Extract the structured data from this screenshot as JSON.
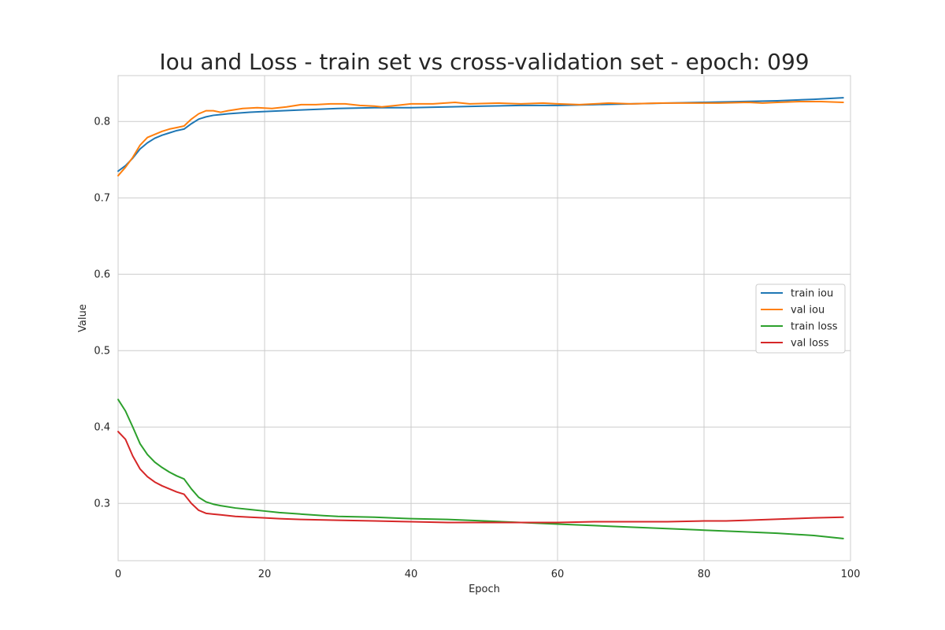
{
  "chart_data": {
    "type": "line",
    "title": "Iou and Loss - train set vs cross-validation set - epoch: 099",
    "xlabel": "Epoch",
    "ylabel": "Value",
    "xlim": [
      0,
      100
    ],
    "ylim": [
      0.225,
      0.86
    ],
    "xticks": [
      0,
      20,
      40,
      60,
      80,
      100
    ],
    "xtick_labels": [
      "0",
      "20",
      "40",
      "60",
      "80",
      "100"
    ],
    "yticks": [
      0.3,
      0.4,
      0.5,
      0.6,
      0.7,
      0.8
    ],
    "ytick_labels": [
      "0.3",
      "0.4",
      "0.5",
      "0.6",
      "0.7",
      "0.8"
    ],
    "grid": true,
    "legend_position": "center-right",
    "series": [
      {
        "name": "train iou",
        "color": "#1f77b4",
        "points": [
          [
            0,
            0.735
          ],
          [
            1,
            0.742
          ],
          [
            2,
            0.752
          ],
          [
            3,
            0.764
          ],
          [
            4,
            0.772
          ],
          [
            5,
            0.778
          ],
          [
            6,
            0.782
          ],
          [
            7,
            0.785
          ],
          [
            8,
            0.788
          ],
          [
            9,
            0.79
          ],
          [
            10,
            0.797
          ],
          [
            11,
            0.803
          ],
          [
            12,
            0.806
          ],
          [
            13,
            0.808
          ],
          [
            14,
            0.809
          ],
          [
            15,
            0.81
          ],
          [
            18,
            0.812
          ],
          [
            20,
            0.813
          ],
          [
            25,
            0.815
          ],
          [
            30,
            0.817
          ],
          [
            35,
            0.818
          ],
          [
            40,
            0.818
          ],
          [
            45,
            0.819
          ],
          [
            50,
            0.82
          ],
          [
            55,
            0.821
          ],
          [
            60,
            0.821
          ],
          [
            65,
            0.822
          ],
          [
            70,
            0.823
          ],
          [
            75,
            0.824
          ],
          [
            80,
            0.825
          ],
          [
            85,
            0.826
          ],
          [
            90,
            0.827
          ],
          [
            95,
            0.829
          ],
          [
            99,
            0.831
          ]
        ]
      },
      {
        "name": "val iou",
        "color": "#ff7f0e",
        "points": [
          [
            0,
            0.729
          ],
          [
            1,
            0.74
          ],
          [
            2,
            0.753
          ],
          [
            3,
            0.769
          ],
          [
            4,
            0.779
          ],
          [
            5,
            0.783
          ],
          [
            6,
            0.787
          ],
          [
            7,
            0.79
          ],
          [
            8,
            0.792
          ],
          [
            9,
            0.794
          ],
          [
            10,
            0.803
          ],
          [
            11,
            0.81
          ],
          [
            12,
            0.814
          ],
          [
            13,
            0.814
          ],
          [
            14,
            0.812
          ],
          [
            15,
            0.814
          ],
          [
            17,
            0.817
          ],
          [
            19,
            0.818
          ],
          [
            21,
            0.817
          ],
          [
            23,
            0.819
          ],
          [
            25,
            0.822
          ],
          [
            27,
            0.822
          ],
          [
            29,
            0.823
          ],
          [
            31,
            0.823
          ],
          [
            33,
            0.821
          ],
          [
            35,
            0.82
          ],
          [
            36,
            0.819
          ],
          [
            38,
            0.821
          ],
          [
            40,
            0.823
          ],
          [
            43,
            0.823
          ],
          [
            46,
            0.825
          ],
          [
            48,
            0.823
          ],
          [
            52,
            0.824
          ],
          [
            55,
            0.823
          ],
          [
            58,
            0.824
          ],
          [
            60,
            0.823
          ],
          [
            63,
            0.822
          ],
          [
            67,
            0.824
          ],
          [
            70,
            0.823
          ],
          [
            74,
            0.824
          ],
          [
            78,
            0.824
          ],
          [
            82,
            0.824
          ],
          [
            86,
            0.825
          ],
          [
            88,
            0.824
          ],
          [
            90,
            0.825
          ],
          [
            93,
            0.826
          ],
          [
            96,
            0.826
          ],
          [
            99,
            0.825
          ]
        ]
      },
      {
        "name": "train loss",
        "color": "#2ca02c",
        "points": [
          [
            0,
            0.436
          ],
          [
            1,
            0.421
          ],
          [
            2,
            0.4
          ],
          [
            3,
            0.378
          ],
          [
            4,
            0.364
          ],
          [
            5,
            0.354
          ],
          [
            6,
            0.347
          ],
          [
            7,
            0.341
          ],
          [
            8,
            0.336
          ],
          [
            9,
            0.332
          ],
          [
            10,
            0.319
          ],
          [
            11,
            0.308
          ],
          [
            12,
            0.302
          ],
          [
            13,
            0.299
          ],
          [
            14,
            0.297
          ],
          [
            16,
            0.294
          ],
          [
            18,
            0.292
          ],
          [
            20,
            0.29
          ],
          [
            22,
            0.288
          ],
          [
            25,
            0.286
          ],
          [
            28,
            0.284
          ],
          [
            30,
            0.283
          ],
          [
            35,
            0.282
          ],
          [
            40,
            0.28
          ],
          [
            45,
            0.279
          ],
          [
            50,
            0.277
          ],
          [
            55,
            0.275
          ],
          [
            60,
            0.273
          ],
          [
            65,
            0.271
          ],
          [
            70,
            0.269
          ],
          [
            75,
            0.267
          ],
          [
            80,
            0.265
          ],
          [
            85,
            0.263
          ],
          [
            90,
            0.261
          ],
          [
            95,
            0.258
          ],
          [
            99,
            0.254
          ]
        ]
      },
      {
        "name": "val loss",
        "color": "#d62728",
        "points": [
          [
            0,
            0.394
          ],
          [
            1,
            0.384
          ],
          [
            2,
            0.362
          ],
          [
            3,
            0.345
          ],
          [
            4,
            0.335
          ],
          [
            5,
            0.328
          ],
          [
            6,
            0.323
          ],
          [
            7,
            0.319
          ],
          [
            8,
            0.315
          ],
          [
            9,
            0.312
          ],
          [
            10,
            0.3
          ],
          [
            11,
            0.291
          ],
          [
            12,
            0.287
          ],
          [
            13,
            0.286
          ],
          [
            14,
            0.285
          ],
          [
            16,
            0.283
          ],
          [
            18,
            0.282
          ],
          [
            20,
            0.281
          ],
          [
            22,
            0.28
          ],
          [
            25,
            0.279
          ],
          [
            30,
            0.278
          ],
          [
            35,
            0.277
          ],
          [
            40,
            0.276
          ],
          [
            45,
            0.275
          ],
          [
            50,
            0.275
          ],
          [
            55,
            0.275
          ],
          [
            60,
            0.275
          ],
          [
            65,
            0.276
          ],
          [
            70,
            0.276
          ],
          [
            75,
            0.276
          ],
          [
            80,
            0.277
          ],
          [
            83,
            0.277
          ],
          [
            86,
            0.278
          ],
          [
            89,
            0.279
          ],
          [
            92,
            0.28
          ],
          [
            95,
            0.281
          ],
          [
            99,
            0.282
          ]
        ]
      }
    ]
  }
}
